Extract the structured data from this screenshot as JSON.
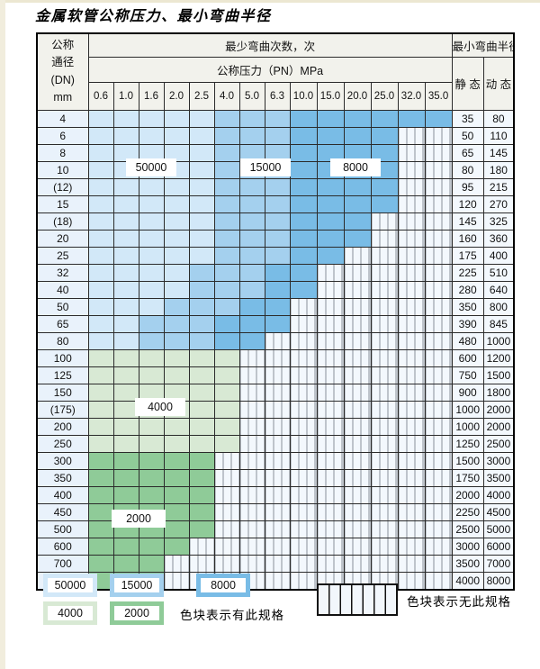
{
  "title": "金属软管公称压力、最小弯曲半径",
  "table": {
    "dn_header_lines": [
      "公称",
      "通径",
      "(DN)",
      "mm"
    ],
    "bend_cycles_header": "最少弯曲次数，次",
    "pressure_header": "公称压力（PN）MPa",
    "radius_header": "最小弯曲半径",
    "static_header": "静 态",
    "dynamic_header": "动 态",
    "pressures": [
      "0.6",
      "1.0",
      "1.6",
      "2.0",
      "2.5",
      "4.0",
      "5.0",
      "6.3",
      "10.0",
      "15.0",
      "20.0",
      "25.0",
      "32.0",
      "35.0"
    ],
    "rows": [
      {
        "dn": "4",
        "static": "35",
        "dynamic": "80",
        "zones": [
          "b1",
          "b1",
          "b1",
          "b1",
          "b1",
          "b2",
          "b2",
          "b2",
          "b3",
          "b3",
          "b3",
          "b3",
          "b3",
          "b3"
        ]
      },
      {
        "dn": "6",
        "static": "50",
        "dynamic": "110",
        "zones": [
          "b1",
          "b1",
          "b1",
          "b1",
          "b1",
          "b2",
          "b2",
          "b2",
          "b3",
          "b3",
          "b3",
          "b3",
          "x",
          "x"
        ]
      },
      {
        "dn": "8",
        "static": "65",
        "dynamic": "145",
        "zones": [
          "b1",
          "b1",
          "b1",
          "b1",
          "b1",
          "b2",
          "b2",
          "b2",
          "b3",
          "b3",
          "b3",
          "b3",
          "x",
          "x"
        ]
      },
      {
        "dn": "10",
        "static": "80",
        "dynamic": "180",
        "zones": [
          "b1",
          "b1",
          "b1",
          "b1",
          "b1",
          "b2",
          "b2",
          "b2",
          "b3",
          "b3",
          "b3",
          "b3",
          "x",
          "x"
        ]
      },
      {
        "dn": "(12)",
        "static": "95",
        "dynamic": "215",
        "zones": [
          "b1",
          "b1",
          "b1",
          "b1",
          "b1",
          "b2",
          "b2",
          "b2",
          "b3",
          "b3",
          "b3",
          "b3",
          "x",
          "x"
        ]
      },
      {
        "dn": "15",
        "static": "120",
        "dynamic": "270",
        "zones": [
          "b1",
          "b1",
          "b1",
          "b1",
          "b1",
          "b2",
          "b2",
          "b2",
          "b3",
          "b3",
          "b3",
          "b3",
          "x",
          "x"
        ]
      },
      {
        "dn": "(18)",
        "static": "145",
        "dynamic": "325",
        "zones": [
          "b1",
          "b1",
          "b1",
          "b1",
          "b1",
          "b2",
          "b2",
          "b2",
          "b3",
          "b3",
          "b3",
          "x",
          "x",
          "x"
        ]
      },
      {
        "dn": "20",
        "static": "160",
        "dynamic": "360",
        "zones": [
          "b1",
          "b1",
          "b1",
          "b1",
          "b1",
          "b2",
          "b2",
          "b2",
          "b3",
          "b3",
          "b3",
          "x",
          "x",
          "x"
        ]
      },
      {
        "dn": "25",
        "static": "175",
        "dynamic": "400",
        "zones": [
          "b1",
          "b1",
          "b1",
          "b1",
          "b1",
          "b2",
          "b2",
          "b2",
          "b3",
          "b3",
          "x",
          "x",
          "x",
          "x"
        ]
      },
      {
        "dn": "32",
        "static": "225",
        "dynamic": "510",
        "zones": [
          "b1",
          "b1",
          "b1",
          "b1",
          "b2",
          "b2",
          "b2",
          "b3",
          "b3",
          "x",
          "x",
          "x",
          "x",
          "x"
        ]
      },
      {
        "dn": "40",
        "static": "280",
        "dynamic": "640",
        "zones": [
          "b1",
          "b1",
          "b1",
          "b1",
          "b2",
          "b2",
          "b2",
          "b3",
          "b3",
          "x",
          "x",
          "x",
          "x",
          "x"
        ]
      },
      {
        "dn": "50",
        "static": "350",
        "dynamic": "800",
        "zones": [
          "b1",
          "b1",
          "b1",
          "b2",
          "b2",
          "b2",
          "b3",
          "b3",
          "x",
          "x",
          "x",
          "x",
          "x",
          "x"
        ]
      },
      {
        "dn": "65",
        "static": "390",
        "dynamic": "845",
        "zones": [
          "b1",
          "b1",
          "b2",
          "b2",
          "b2",
          "b3",
          "b3",
          "b3",
          "x",
          "x",
          "x",
          "x",
          "x",
          "x"
        ]
      },
      {
        "dn": "80",
        "static": "480",
        "dynamic": "1000",
        "zones": [
          "b1",
          "b1",
          "b2",
          "b2",
          "b2",
          "b3",
          "b3",
          "x",
          "x",
          "x",
          "x",
          "x",
          "x",
          "x"
        ]
      },
      {
        "dn": "100",
        "static": "600",
        "dynamic": "1200",
        "zones": [
          "g1",
          "g1",
          "g1",
          "g1",
          "g1",
          "g1",
          "x",
          "x",
          "x",
          "x",
          "x",
          "x",
          "x",
          "x"
        ]
      },
      {
        "dn": "125",
        "static": "750",
        "dynamic": "1500",
        "zones": [
          "g1",
          "g1",
          "g1",
          "g1",
          "g1",
          "g1",
          "x",
          "x",
          "x",
          "x",
          "x",
          "x",
          "x",
          "x"
        ]
      },
      {
        "dn": "150",
        "static": "900",
        "dynamic": "1800",
        "zones": [
          "g1",
          "g1",
          "g1",
          "g1",
          "g1",
          "g1",
          "x",
          "x",
          "x",
          "x",
          "x",
          "x",
          "x",
          "x"
        ]
      },
      {
        "dn": "(175)",
        "static": "1000",
        "dynamic": "2000",
        "zones": [
          "g1",
          "g1",
          "g1",
          "g1",
          "g1",
          "g1",
          "x",
          "x",
          "x",
          "x",
          "x",
          "x",
          "x",
          "x"
        ]
      },
      {
        "dn": "200",
        "static": "1000",
        "dynamic": "2000",
        "zones": [
          "g1",
          "g1",
          "g1",
          "g1",
          "g1",
          "g1",
          "x",
          "x",
          "x",
          "x",
          "x",
          "x",
          "x",
          "x"
        ]
      },
      {
        "dn": "250",
        "static": "1250",
        "dynamic": "2500",
        "zones": [
          "g1",
          "g1",
          "g1",
          "g1",
          "g1",
          "g1",
          "x",
          "x",
          "x",
          "x",
          "x",
          "x",
          "x",
          "x"
        ]
      },
      {
        "dn": "300",
        "static": "1500",
        "dynamic": "3000",
        "zones": [
          "g2",
          "g2",
          "g2",
          "g2",
          "g2",
          "x",
          "x",
          "x",
          "x",
          "x",
          "x",
          "x",
          "x",
          "x"
        ]
      },
      {
        "dn": "350",
        "static": "1750",
        "dynamic": "3500",
        "zones": [
          "g2",
          "g2",
          "g2",
          "g2",
          "g2",
          "x",
          "x",
          "x",
          "x",
          "x",
          "x",
          "x",
          "x",
          "x"
        ]
      },
      {
        "dn": "400",
        "static": "2000",
        "dynamic": "4000",
        "zones": [
          "g2",
          "g2",
          "g2",
          "g2",
          "g2",
          "x",
          "x",
          "x",
          "x",
          "x",
          "x",
          "x",
          "x",
          "x"
        ]
      },
      {
        "dn": "450",
        "static": "2250",
        "dynamic": "4500",
        "zones": [
          "g2",
          "g2",
          "g2",
          "g2",
          "g2",
          "x",
          "x",
          "x",
          "x",
          "x",
          "x",
          "x",
          "x",
          "x"
        ]
      },
      {
        "dn": "500",
        "static": "2500",
        "dynamic": "5000",
        "zones": [
          "g2",
          "g2",
          "g2",
          "g2",
          "g2",
          "x",
          "x",
          "x",
          "x",
          "x",
          "x",
          "x",
          "x",
          "x"
        ]
      },
      {
        "dn": "600",
        "static": "3000",
        "dynamic": "6000",
        "zones": [
          "g2",
          "g2",
          "g2",
          "g2",
          "x",
          "x",
          "x",
          "x",
          "x",
          "x",
          "x",
          "x",
          "x",
          "x"
        ]
      },
      {
        "dn": "700",
        "static": "3500",
        "dynamic": "7000",
        "zones": [
          "g2",
          "g2",
          "g2",
          "x",
          "x",
          "x",
          "x",
          "x",
          "x",
          "x",
          "x",
          "x",
          "x",
          "x"
        ]
      },
      {
        "dn": "800",
        "static": "4000",
        "dynamic": "8000",
        "zones": [
          "g2",
          "g2",
          "g2",
          "x",
          "x",
          "x",
          "x",
          "x",
          "x",
          "x",
          "x",
          "x",
          "x",
          "x"
        ]
      }
    ]
  },
  "overlays": [
    {
      "id": "label-50000",
      "text": "50000"
    },
    {
      "id": "label-15000",
      "text": "15000"
    },
    {
      "id": "label-8000",
      "text": "8000"
    },
    {
      "id": "label-4000",
      "text": "4000"
    },
    {
      "id": "label-2000",
      "text": "2000"
    }
  ],
  "legend": {
    "items": [
      {
        "label": "50000",
        "color": "#d2e8f8"
      },
      {
        "label": "15000",
        "color": "#a4d0ee"
      },
      {
        "label": "8000",
        "color": "#79bce6"
      },
      {
        "label": "4000",
        "color": "#d8e9d4"
      },
      {
        "label": "2000",
        "color": "#8fcb98"
      }
    ],
    "has_spec_text": "色块表示有此规格",
    "no_spec_text": "色块表示无此规格"
  },
  "colors": {
    "cycles_50000": "#d2e8f8",
    "cycles_15000": "#a4d0ee",
    "cycles_8000": "#79bce6",
    "cycles_4000": "#d8e9d4",
    "cycles_2000": "#8fcb98",
    "no_spec_bg": "#f3f8fd"
  }
}
